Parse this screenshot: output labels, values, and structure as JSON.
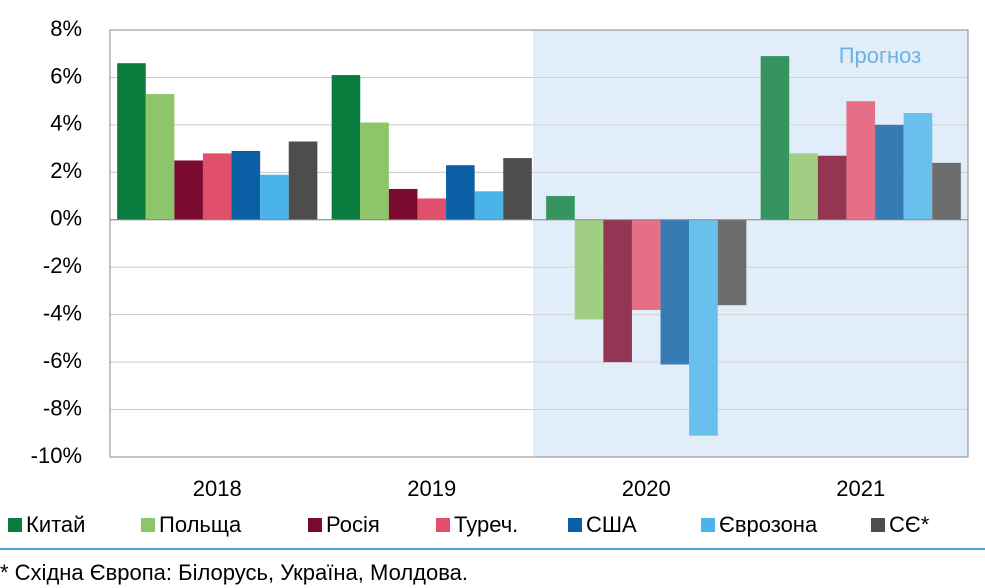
{
  "chart_data": {
    "type": "bar",
    "categories": [
      "2018",
      "2019",
      "2020",
      "2021"
    ],
    "annotation": "Прогноз",
    "footnote": "* Східна Європа: Білорусь, Україна, Молдова.",
    "series": [
      {
        "name": "Китай",
        "color": "#0a7d3e",
        "values": [
          6.6,
          6.1,
          1.0,
          6.9
        ]
      },
      {
        "name": "Польща",
        "color": "#8cc56a",
        "values": [
          5.3,
          4.1,
          -4.2,
          2.8
        ]
      },
      {
        "name": "Росія",
        "color": "#7a0a2e",
        "values": [
          2.5,
          1.3,
          -6.0,
          2.7
        ]
      },
      {
        "name": "Туреч.",
        "color": "#e0506a",
        "values": [
          2.8,
          0.9,
          -3.8,
          5.0
        ]
      },
      {
        "name": "США",
        "color": "#0b5fa5",
        "values": [
          2.9,
          2.3,
          -6.1,
          4.0
        ]
      },
      {
        "name": "Єврозона",
        "color": "#4ab3e8",
        "values": [
          1.9,
          1.2,
          -9.1,
          4.5
        ]
      },
      {
        "name": "СЄ*",
        "color": "#4d4d4d",
        "values": [
          3.3,
          2.6,
          -3.6,
          2.4
        ]
      }
    ],
    "ylim": [
      -10,
      8
    ],
    "yticks": [
      {
        "value": -10,
        "label": "-10%"
      },
      {
        "value": -8,
        "label": "-8%"
      },
      {
        "value": -6,
        "label": "-6%"
      },
      {
        "value": -4,
        "label": "-4%"
      },
      {
        "value": -2,
        "label": "-2%"
      },
      {
        "value": 0,
        "label": "0%"
      },
      {
        "value": 2,
        "label": "2%"
      },
      {
        "value": 4,
        "label": "4%"
      },
      {
        "value": 6,
        "label": "6%"
      },
      {
        "value": 8,
        "label": "8%"
      }
    ],
    "grid": true
  }
}
